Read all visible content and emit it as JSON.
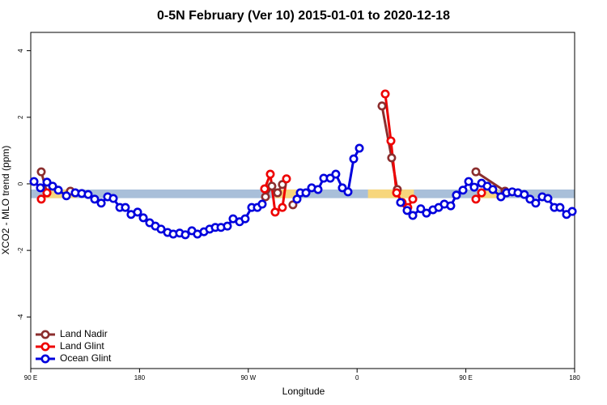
{
  "chart_data": {
    "type": "line",
    "title": "0-5N February (Ver 10)   2015-01-01 to 2020-12-18",
    "x_label": "Longitude",
    "y_label": "XCO2 - MLO trend (ppm)",
    "xlim": [
      90,
      540
    ],
    "ylim": [
      -5.55,
      4.55
    ],
    "xticks": [
      {
        "value": 90,
        "label": "90 E"
      },
      180,
      {
        "value": 270,
        "label": "90 W"
      },
      {
        "value": 360,
        "label": "0"
      },
      {
        "value": 450,
        "label": "90 E"
      },
      {
        "value": 540,
        "label": "180"
      }
    ],
    "yticks": [
      -4,
      -2,
      0,
      2,
      4
    ],
    "legend": "bottom-left",
    "reference_band": {
      "y": [
        -0.43,
        -0.17
      ],
      "color": "#a9bfd9",
      "land_color": "#f7d67c",
      "land_spans": [
        [
          101,
          128
        ],
        [
          292,
          312
        ],
        [
          369,
          407
        ],
        [
          460,
          477
        ]
      ]
    },
    "series": [
      {
        "name": "Land Nadir",
        "color": "#8b2e2e",
        "x": [
          98.7,
          103.4,
          null,
          122.8,
          null,
          284.2,
          289.5,
          294.2,
          298.2,
          null,
          306.9,
          null,
          380.6,
          388.6,
          393.3,
          null,
          458.3,
          482.4
        ],
        "values": [
          0.36,
          -0.27,
          null,
          -0.22,
          null,
          -0.39,
          -0.07,
          -0.27,
          -0.02,
          null,
          -0.63,
          null,
          2.34,
          0.78,
          -0.17,
          null,
          0.36,
          -0.22
        ]
      },
      {
        "name": "Land Glint",
        "color": "#ee0000",
        "x": [
          98.7,
          103.4,
          null,
          283.5,
          288.2,
          292.2,
          298.2,
          301.6,
          null,
          383.3,
          388.0,
          392.7,
          397.3,
          402.0,
          406.1,
          null,
          458.3,
          463.0
        ],
        "values": [
          -0.46,
          -0.27,
          null,
          -0.15,
          0.29,
          -0.85,
          -0.71,
          0.15,
          null,
          2.7,
          1.29,
          -0.27,
          -0.56,
          -0.71,
          -0.46,
          null,
          -0.46,
          -0.27
        ]
      },
      {
        "name": "Ocean Glint",
        "color": "#0000dd",
        "x": [
          92.7,
          98.0,
          103.4,
          108.1,
          112.8,
          119.5,
          126.8,
          132.2,
          137.5,
          142.9,
          148.3,
          153.6,
          158.3,
          163.7,
          168.3,
          173.0,
          178.4,
          183.1,
          188.4,
          193.1,
          197.8,
          203.2,
          207.9,
          213.2,
          217.9,
          223.3,
          227.9,
          233.3,
          238.0,
          242.7,
          247.4,
          252.7,
          257.4,
          262.8,
          267.4,
          272.8,
          277.5,
          281.5,
          null,
          310.3,
          313.0,
          317.7,
          322.4,
          327.7,
          332.4,
          337.8,
          342.4,
          347.8,
          352.5,
          357.2,
          361.9,
          null,
          396.0,
          401.4,
          406.1,
          412.7,
          417.4,
          422.8,
          427.5,
          432.2,
          437.5,
          442.2,
          447.6,
          452.3,
          456.9,
          463.0,
          467.7,
          472.3,
          479.0,
          483.7,
          488.4,
          493.1,
          498.4,
          503.1,
          507.8,
          513.2,
          517.9,
          523.2,
          527.9,
          533.3,
          538.0
        ],
        "values": [
          0.07,
          -0.12,
          0.05,
          -0.07,
          -0.19,
          -0.36,
          -0.27,
          -0.29,
          -0.32,
          -0.46,
          -0.58,
          -0.39,
          -0.44,
          -0.71,
          -0.71,
          -0.92,
          -0.85,
          -1.02,
          -1.17,
          -1.27,
          -1.36,
          -1.46,
          -1.51,
          -1.48,
          -1.53,
          -1.41,
          -1.51,
          -1.44,
          -1.36,
          -1.31,
          -1.31,
          -1.27,
          -1.05,
          -1.14,
          -1.05,
          -0.71,
          -0.71,
          -0.61,
          null,
          -0.46,
          -0.27,
          -0.27,
          -0.12,
          -0.17,
          0.17,
          0.17,
          0.29,
          -0.12,
          -0.24,
          0.75,
          1.07,
          null,
          -0.56,
          -0.8,
          -0.95,
          -0.75,
          -0.88,
          -0.78,
          -0.71,
          -0.61,
          -0.66,
          -0.34,
          -0.19,
          0.07,
          -0.1,
          0.02,
          -0.07,
          -0.17,
          -0.39,
          -0.27,
          -0.24,
          -0.27,
          -0.32,
          -0.46,
          -0.58,
          -0.39,
          -0.44,
          -0.71,
          -0.71,
          -0.92,
          -0.83
        ]
      }
    ]
  }
}
